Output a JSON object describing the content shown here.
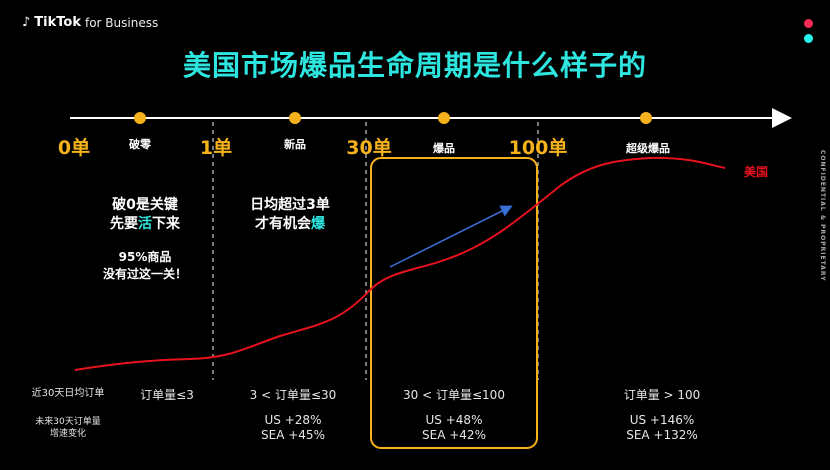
{
  "brand": {
    "logo": "♪",
    "name": "TikTok",
    "suffix": "for Business"
  },
  "title": "美国市场爆品生命周期是什么样子的",
  "colors": {
    "accent": "#2ee6e0",
    "gold": "#f5b21c",
    "curve": "#e8121f",
    "dot_red": "#fe2c55",
    "dot_cyan": "#25f4ee",
    "box": "#f5b21c",
    "arrow": "#3b6fd8"
  },
  "milestones": [
    {
      "id": "0",
      "label": "0单"
    },
    {
      "id": "1",
      "label": "1单"
    },
    {
      "id": "30",
      "label": "30单"
    },
    {
      "id": "100",
      "label": "100单"
    }
  ],
  "stages": [
    {
      "id": "pojing",
      "label": "破零"
    },
    {
      "id": "xinpin",
      "label": "新品"
    },
    {
      "id": "baopin",
      "label": "爆品"
    },
    {
      "id": "chaoji",
      "label": "超级爆品"
    }
  ],
  "messages": {
    "m1_line1": "破0是关键",
    "m1_line2_a": "先要",
    "m1_line2_hl": "活",
    "m1_line2_b": "下来",
    "m2_line1": "95%商品",
    "m2_line2": "没有过这一关！",
    "m3_line1": "日均超过3单",
    "m3_line2_a": "才有机会",
    "m3_line2_hl": "爆"
  },
  "series_label": "美国",
  "row_labels": {
    "daily_orders": "近30天日均订单",
    "growth_line1": "未来30天订单量",
    "growth_line2": "增速变化"
  },
  "conditions": [
    "订单量≤3",
    "3 < 订单量≤30",
    "30 < 订单量≤100",
    "订单量 > 100"
  ],
  "growth": [
    {
      "us": "US +28%",
      "sea": "SEA +45%"
    },
    {
      "us": "US +48%",
      "sea": "SEA +42%"
    },
    {
      "us": "US +146%",
      "sea": "SEA +132%"
    }
  ],
  "sidebar_text": "CONFIDENTIAL & PROPRIETARY"
}
